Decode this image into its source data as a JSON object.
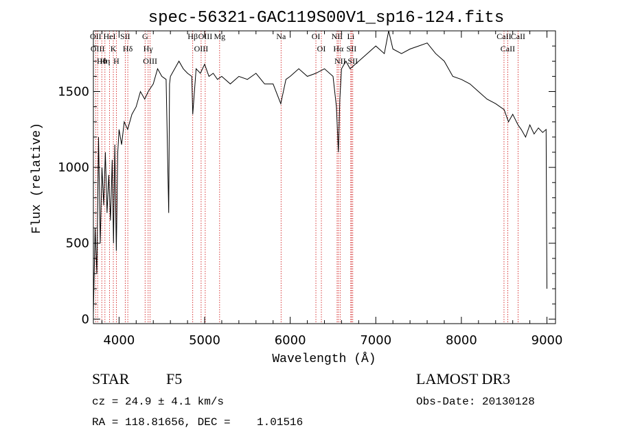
{
  "chart_data": {
    "type": "line",
    "title": "spec-56321-GAC119S00V1_sp16-124.fits",
    "xlabel": "Wavelength (Å)",
    "ylabel": "Flux (relative)",
    "xlim": [
      3700,
      9100
    ],
    "ylim": [
      -30,
      1900
    ],
    "xticks": [
      4000,
      5000,
      6000,
      7000,
      8000,
      9000
    ],
    "yticks": [
      0,
      500,
      1000,
      1500
    ],
    "grid": false,
    "legend": "none",
    "series": [
      {
        "name": "flux",
        "x": [
          3700,
          3720,
          3740,
          3760,
          3780,
          3800,
          3820,
          3840,
          3860,
          3880,
          3900,
          3920,
          3935,
          3950,
          3968,
          3985,
          4000,
          4030,
          4060,
          4100,
          4150,
          4200,
          4250,
          4300,
          4340,
          4400,
          4450,
          4500,
          4550,
          4580,
          4590,
          4600,
          4650,
          4700,
          4750,
          4800,
          4850,
          4861,
          4900,
          4950,
          5000,
          5050,
          5100,
          5150,
          5200,
          5300,
          5400,
          5500,
          5600,
          5700,
          5800,
          5890,
          5950,
          6000,
          6100,
          6200,
          6300,
          6400,
          6500,
          6540,
          6563,
          6580,
          6600,
          6650,
          6700,
          6800,
          6900,
          7000,
          7100,
          7150,
          7200,
          7300,
          7400,
          7500,
          7600,
          7700,
          7800,
          7900,
          8000,
          8100,
          8200,
          8300,
          8400,
          8500,
          8550,
          8600,
          8662,
          8700,
          8750,
          8800,
          8850,
          8900,
          8950,
          8990,
          9000
        ],
        "y": [
          30,
          600,
          300,
          1200,
          500,
          1000,
          750,
          1100,
          700,
          950,
          650,
          1050,
          500,
          1150,
          450,
          1100,
          1250,
          1150,
          1300,
          1250,
          1350,
          1400,
          1500,
          1450,
          1500,
          1550,
          1650,
          1600,
          1580,
          700,
          1550,
          1600,
          1650,
          1700,
          1650,
          1620,
          1600,
          1350,
          1650,
          1620,
          1680,
          1600,
          1620,
          1580,
          1600,
          1550,
          1600,
          1580,
          1620,
          1550,
          1550,
          1420,
          1580,
          1600,
          1650,
          1600,
          1620,
          1650,
          1600,
          1400,
          1100,
          1450,
          1650,
          1700,
          1650,
          1700,
          1750,
          1800,
          1750,
          1900,
          1780,
          1750,
          1780,
          1800,
          1820,
          1750,
          1700,
          1600,
          1580,
          1550,
          1500,
          1450,
          1420,
          1380,
          1300,
          1350,
          1280,
          1250,
          1200,
          1280,
          1220,
          1260,
          1230,
          1250,
          200
        ]
      }
    ],
    "line_markers": [
      {
        "wavelength": 3727,
        "label": "OII"
      },
      {
        "wavelength": 3750,
        "label": "OIII"
      },
      {
        "wavelength": 3798,
        "label": "Hθ"
      },
      {
        "wavelength": 3835,
        "label": "Hη"
      },
      {
        "wavelength": 3889,
        "label": "HeI"
      },
      {
        "wavelength": 3933,
        "label": "K"
      },
      {
        "wavelength": 3968,
        "label": "H"
      },
      {
        "wavelength": 4072,
        "label": "SII"
      },
      {
        "wavelength": 4102,
        "label": "Hδ"
      },
      {
        "wavelength": 4304,
        "label": "G"
      },
      {
        "wavelength": 4340,
        "label": "Hγ"
      },
      {
        "wavelength": 4363,
        "label": "OIII"
      },
      {
        "wavelength": 4861,
        "label": "Hβ"
      },
      {
        "wavelength": 4959,
        "label": "OIII"
      },
      {
        "wavelength": 5007,
        "label": "OIII"
      },
      {
        "wavelength": 5175,
        "label": "Mg"
      },
      {
        "wavelength": 5893,
        "label": "Na"
      },
      {
        "wavelength": 6300,
        "label": "OI"
      },
      {
        "wavelength": 6364,
        "label": "OI"
      },
      {
        "wavelength": 6548,
        "label": "NII"
      },
      {
        "wavelength": 6563,
        "label": "Hα"
      },
      {
        "wavelength": 6583,
        "label": "NII"
      },
      {
        "wavelength": 6708,
        "label": "Li"
      },
      {
        "wavelength": 6716,
        "label": "SII"
      },
      {
        "wavelength": 6731,
        "label": "SII"
      },
      {
        "wavelength": 8498,
        "label": "CaII"
      },
      {
        "wavelength": 8542,
        "label": "CaII"
      },
      {
        "wavelength": 8662,
        "label": "CaII"
      }
    ]
  },
  "info": {
    "class_label": "STAR",
    "subclass": "F5",
    "survey": "LAMOST DR3",
    "cz": "cz = 24.9 ± 4.1 km/s",
    "obs_date": "Obs-Date: 20130128",
    "radec": "RA = 118.81656, DEC =    1.01516"
  },
  "colors": {
    "axis": "#000000",
    "spectrum": "#000000",
    "marker_line": "#cc0000"
  }
}
